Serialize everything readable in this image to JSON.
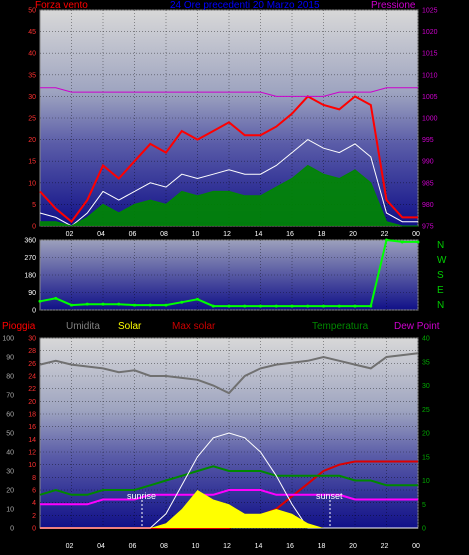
{
  "top": {
    "left_title": "Forza vento",
    "center_title": "24 Ore precedenti 20 Marzo 2015",
    "right_title": "Pressione",
    "left_color": "#ff0000",
    "center_color": "#0000ff",
    "right_color": "#cc00cc"
  },
  "dir": {
    "letters": [
      "N",
      "W",
      "S",
      "E",
      "N"
    ],
    "letters_color": "#00cc00"
  },
  "bottom_labels": {
    "pioggia": "Pioggia",
    "umidita": "Umidita",
    "solar": "Solar",
    "max_solar": "Max solar",
    "temperatura": "Temperatura",
    "dew_point": "Dew Point"
  },
  "annotations": {
    "sunrise": "sunrise",
    "sunset": "sunset"
  },
  "chart_data": [
    {
      "type": "line",
      "title": "24 Ore precedenti 20 Marzo 2015",
      "x_ticks": [
        "02",
        "04",
        "06",
        "08",
        "10",
        "12",
        "14",
        "16",
        "18",
        "20",
        "22",
        "00"
      ],
      "ylabel_left": "Forza vento",
      "ylabel_right": "Pressione",
      "ylim_left": [
        0,
        50
      ],
      "ylim_right": [
        975,
        1025
      ],
      "y_ticks_left": [
        0,
        5,
        10,
        15,
        20,
        25,
        30,
        35,
        40,
        45,
        50
      ],
      "y_ticks_right": [
        975,
        980,
        985,
        990,
        995,
        1000,
        1005,
        1010,
        1015,
        1020,
        1025
      ],
      "x": [
        0,
        1,
        2,
        3,
        4,
        5,
        6,
        7,
        8,
        9,
        10,
        11,
        12,
        13,
        14,
        15,
        16,
        17,
        18,
        19,
        20,
        21,
        22,
        23,
        24
      ],
      "series": [
        {
          "name": "gust",
          "axis": "left",
          "color": "#ff0000",
          "values": [
            8,
            4,
            1,
            6,
            14,
            11,
            15,
            19,
            17,
            22,
            20,
            22,
            24,
            21,
            21,
            23,
            26,
            30,
            28,
            27,
            30,
            28,
            6,
            2,
            2
          ]
        },
        {
          "name": "avg",
          "axis": "left",
          "color": "#ffffff",
          "values": [
            3,
            2,
            0,
            3,
            8,
            6,
            8,
            10,
            9,
            12,
            11,
            12,
            13,
            12,
            12,
            14,
            17,
            20,
            18,
            17,
            19,
            16,
            3,
            1,
            1
          ]
        },
        {
          "name": "speed",
          "axis": "left",
          "color": "#008800",
          "values": [
            1,
            1,
            0,
            2,
            5,
            3,
            5,
            6,
            5,
            8,
            7,
            8,
            8,
            7,
            7,
            9,
            11,
            14,
            12,
            11,
            13,
            10,
            1,
            0,
            0
          ]
        },
        {
          "name": "pressure",
          "axis": "right",
          "color": "#cc00cc",
          "values": [
            1007,
            1007,
            1006,
            1006,
            1006,
            1006,
            1006,
            1006,
            1006,
            1006,
            1006,
            1006,
            1006,
            1006,
            1006,
            1005,
            1005,
            1005,
            1005,
            1006,
            1006,
            1006,
            1007,
            1007,
            1007
          ]
        }
      ]
    },
    {
      "type": "scatter",
      "x_ticks": [
        "02",
        "04",
        "06",
        "08",
        "10",
        "12",
        "14",
        "16",
        "18",
        "20",
        "22",
        "00"
      ],
      "ylim": [
        0,
        360
      ],
      "y_ticks": [
        0,
        90,
        180,
        270,
        360
      ],
      "x": [
        0,
        1,
        2,
        3,
        4,
        5,
        6,
        7,
        8,
        9,
        10,
        11,
        12,
        13,
        14,
        15,
        16,
        17,
        18,
        19,
        20,
        21,
        22,
        23,
        24
      ],
      "series": [
        {
          "name": "direction",
          "color": "#00ff00",
          "values": [
            45,
            60,
            25,
            30,
            30,
            30,
            25,
            25,
            25,
            40,
            55,
            20,
            20,
            20,
            20,
            20,
            20,
            20,
            20,
            20,
            20,
            20,
            360,
            350,
            350
          ]
        }
      ]
    },
    {
      "type": "line",
      "x_ticks": [
        "02",
        "04",
        "06",
        "08",
        "10",
        "12",
        "14",
        "16",
        "18",
        "20",
        "22",
        "00"
      ],
      "y_ticks_hum": [
        0,
        10,
        20,
        30,
        40,
        50,
        60,
        70,
        80,
        90,
        100
      ],
      "y_ticks_rain": [
        0,
        2,
        4,
        6,
        8,
        10,
        12,
        14,
        16,
        18,
        20,
        22,
        24,
        26,
        28,
        30
      ],
      "y_ticks_temp": [
        0,
        5,
        10,
        15,
        20,
        25,
        30,
        35,
        40
      ],
      "ylim_hum": [
        0,
        100
      ],
      "ylim_rain": [
        0,
        30
      ],
      "ylim_temp": [
        0,
        40
      ],
      "x": [
        0,
        1,
        2,
        3,
        4,
        5,
        6,
        7,
        8,
        9,
        10,
        11,
        12,
        13,
        14,
        15,
        16,
        17,
        18,
        19,
        20,
        21,
        22,
        23,
        24
      ],
      "series": [
        {
          "name": "Umidita",
          "axis": "hum",
          "color": "#707070",
          "values": [
            86,
            88,
            86,
            85,
            84,
            82,
            83,
            80,
            80,
            79,
            78,
            75,
            71,
            80,
            84,
            86,
            87,
            88,
            90,
            88,
            86,
            84,
            90,
            91,
            92
          ]
        },
        {
          "name": "Pioggia",
          "axis": "rain",
          "color": "#dd0000",
          "values": [
            0,
            0,
            0,
            0,
            0,
            0,
            0,
            0,
            0,
            0,
            0,
            0,
            0,
            1,
            2,
            3,
            5,
            7,
            9,
            10,
            10.5,
            10.5,
            10.5,
            10.5,
            10.5
          ]
        },
        {
          "name": "Temperatura",
          "axis": "temp",
          "color": "#008800",
          "values": [
            7,
            8,
            7,
            7,
            8,
            8,
            8,
            9,
            10,
            11,
            12,
            13,
            12,
            12,
            12,
            11,
            11,
            11,
            11,
            11,
            10,
            10,
            9,
            9,
            9
          ]
        },
        {
          "name": "Dew Point",
          "axis": "temp",
          "color": "#ff00ff",
          "values": [
            5,
            5,
            5,
            5,
            6,
            6,
            6,
            7,
            7,
            7,
            7,
            7,
            8,
            8,
            8,
            7,
            7,
            7,
            7,
            7,
            6,
            6,
            6,
            6,
            6
          ]
        },
        {
          "name": "Max solar",
          "axis": "temp",
          "color": "#ffffff",
          "values": [
            0,
            0,
            0,
            0,
            0,
            0,
            0,
            0,
            3,
            9,
            15,
            19,
            20,
            19,
            16,
            11,
            5,
            0,
            0,
            0,
            0,
            0,
            0,
            0,
            0
          ]
        },
        {
          "name": "Solar",
          "axis": "temp",
          "color": "#ffff00",
          "values": [
            0,
            0,
            0,
            0,
            0,
            0,
            0,
            0,
            1,
            4,
            8,
            6,
            5,
            3,
            3,
            4,
            3,
            1,
            0,
            0,
            0,
            0,
            0,
            0,
            0
          ]
        }
      ]
    }
  ]
}
